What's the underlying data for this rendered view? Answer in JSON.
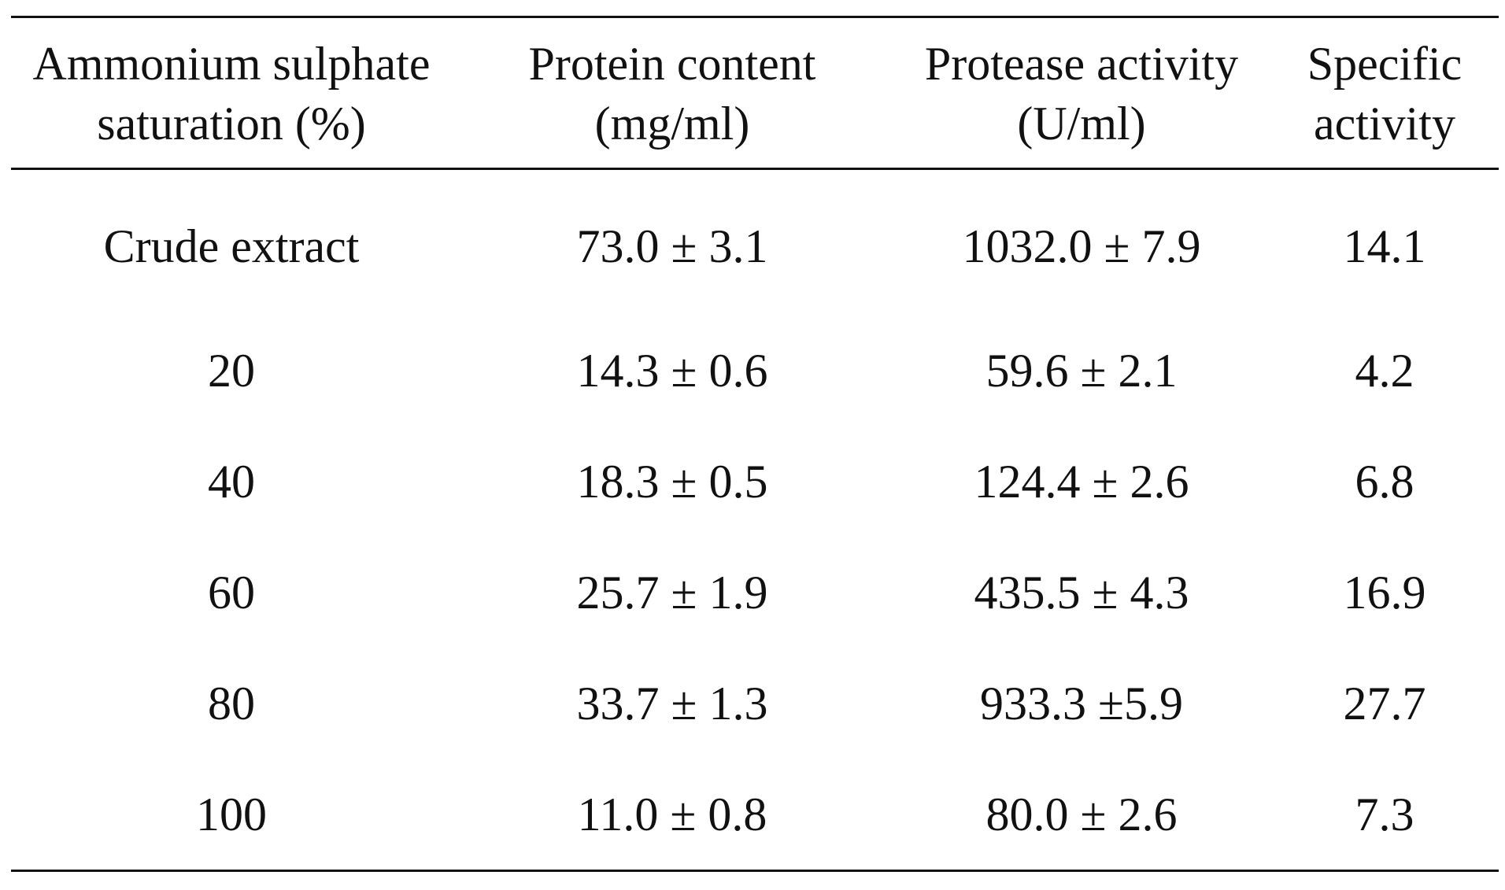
{
  "table": {
    "headers": [
      [
        "Ammonium sulphate",
        "saturation (%)"
      ],
      [
        "Protein content",
        "(mg/ml)"
      ],
      [
        "Protease activity",
        "(U/ml)"
      ],
      [
        "Specific",
        "activity"
      ]
    ],
    "rows": [
      [
        "Crude extract",
        "73.0 ± 3.1",
        "1032.0 ± 7.9",
        "14.1"
      ],
      [
        "20",
        "14.3 ± 0.6",
        "59.6 ± 2.1",
        "4.2"
      ],
      [
        "40",
        "18.3 ± 0.5",
        "124.4 ± 2.6",
        "6.8"
      ],
      [
        "60",
        "25.7 ± 1.9",
        "435.5 ± 4.3",
        "16.9"
      ],
      [
        "80",
        "33.7 ± 1.3",
        "933.3 ±5.9",
        "27.7"
      ],
      [
        "100",
        "11.0 ± 0.8",
        "80.0 ± 2.6",
        "7.3"
      ]
    ]
  }
}
